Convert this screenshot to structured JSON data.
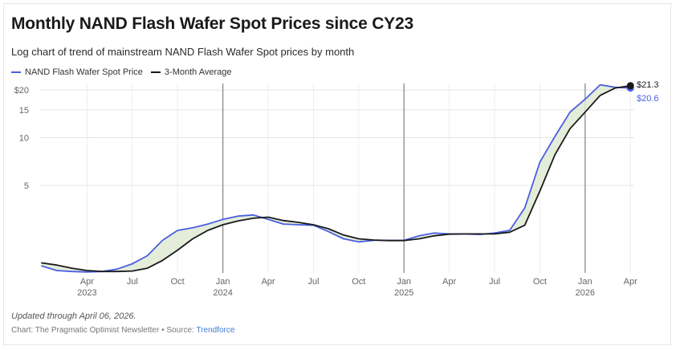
{
  "chart_data": {
    "type": "line",
    "title": "Monthly NAND Flash Wafer Spot Prices since CY23",
    "subtitle": "Log chart of trend of mainstream NAND Flash Wafer Spot prices by month",
    "xlabel": "",
    "ylabel": "",
    "yscale": "log",
    "ylim": [
      1.4,
      22
    ],
    "y_ticks": [
      5,
      10,
      15,
      20
    ],
    "y_tick_labels": [
      "5",
      "10",
      "15",
      "$20"
    ],
    "x": [
      "2023-01",
      "2023-02",
      "2023-03",
      "2023-04",
      "2023-05",
      "2023-06",
      "2023-07",
      "2023-08",
      "2023-09",
      "2023-10",
      "2023-11",
      "2023-12",
      "2024-01",
      "2024-02",
      "2024-03",
      "2024-04",
      "2024-05",
      "2024-06",
      "2024-07",
      "2024-08",
      "2024-09",
      "2024-10",
      "2024-11",
      "2024-12",
      "2025-01",
      "2025-02",
      "2025-03",
      "2025-04",
      "2025-05",
      "2025-06",
      "2025-07",
      "2025-08",
      "2025-09",
      "2025-10",
      "2025-11",
      "2025-12",
      "2026-01",
      "2026-02",
      "2026-03",
      "2026-04"
    ],
    "x_ticks": [
      {
        "date": "2023-04",
        "label": "Apr",
        "year": "2023"
      },
      {
        "date": "2023-07",
        "label": "Jul",
        "year": ""
      },
      {
        "date": "2023-10",
        "label": "Oct",
        "year": ""
      },
      {
        "date": "2024-01",
        "label": "Jan",
        "year": "2024"
      },
      {
        "date": "2024-04",
        "label": "Apr",
        "year": ""
      },
      {
        "date": "2024-07",
        "label": "Jul",
        "year": ""
      },
      {
        "date": "2024-10",
        "label": "Oct",
        "year": ""
      },
      {
        "date": "2025-01",
        "label": "Jan",
        "year": "2025"
      },
      {
        "date": "2025-04",
        "label": "Apr",
        "year": ""
      },
      {
        "date": "2025-07",
        "label": "Jul",
        "year": ""
      },
      {
        "date": "2025-10",
        "label": "Oct",
        "year": ""
      },
      {
        "date": "2026-01",
        "label": "Jan",
        "year": "2026"
      },
      {
        "date": "2026-04",
        "label": "Apr",
        "year": ""
      }
    ],
    "year_dividers": [
      "2024-01",
      "2025-01",
      "2026-01"
    ],
    "series": [
      {
        "name": "NAND Flash Wafer Spot Price",
        "color": "#4a5fe0",
        "values": [
          1.55,
          1.45,
          1.43,
          1.42,
          1.43,
          1.48,
          1.6,
          1.8,
          2.25,
          2.6,
          2.7,
          2.85,
          3.05,
          3.2,
          3.25,
          3.05,
          2.85,
          2.82,
          2.8,
          2.55,
          2.3,
          2.2,
          2.25,
          2.25,
          2.25,
          2.4,
          2.5,
          2.47,
          2.47,
          2.45,
          2.5,
          2.6,
          3.6,
          7.0,
          10.2,
          14.5,
          17.5,
          21.6,
          20.8,
          20.6
        ],
        "end_label": "$20.6"
      },
      {
        "name": "3-Month Average",
        "color": "#1a1a1a",
        "values": [
          1.62,
          1.57,
          1.5,
          1.45,
          1.43,
          1.43,
          1.44,
          1.5,
          1.68,
          1.95,
          2.3,
          2.6,
          2.82,
          2.98,
          3.1,
          3.15,
          3.0,
          2.92,
          2.82,
          2.66,
          2.43,
          2.3,
          2.26,
          2.24,
          2.24,
          2.3,
          2.4,
          2.46,
          2.47,
          2.47,
          2.47,
          2.53,
          2.8,
          4.6,
          7.8,
          11.4,
          14.5,
          18.5,
          20.6,
          21.3
        ],
        "end_label": "$21.3"
      }
    ],
    "legend": "top-left",
    "grid": true
  },
  "footnote": "Updated through April 06, 2026.",
  "credit_prefix": "Chart: The Pragmatic Optimist Newsletter • Source: ",
  "credit_source": "Trendforce"
}
